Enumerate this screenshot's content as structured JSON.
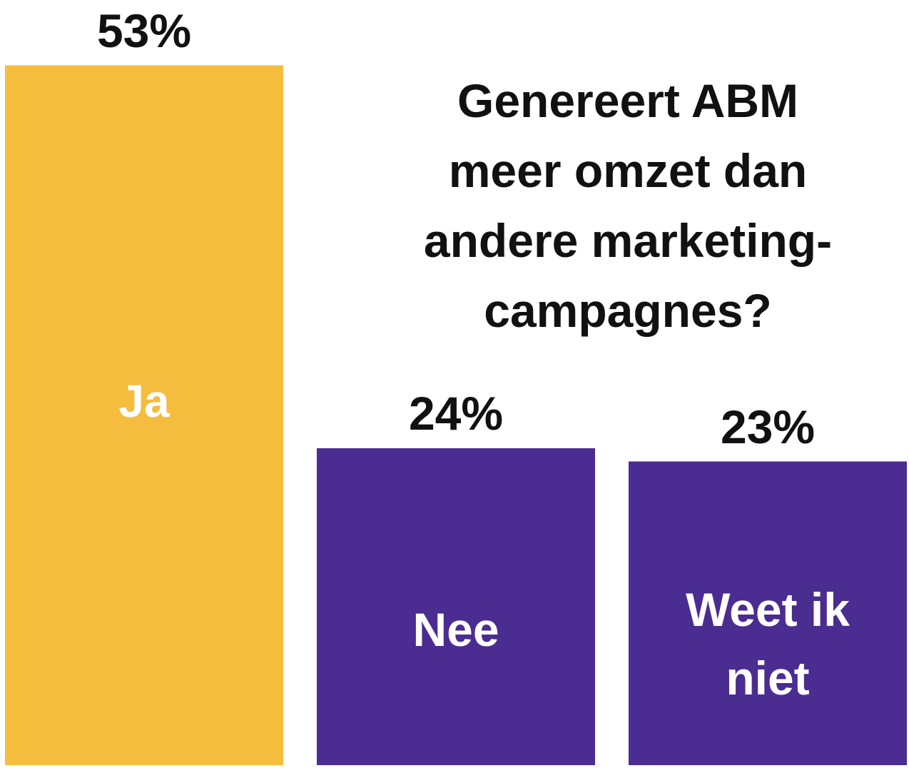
{
  "chart_data": {
    "type": "bar",
    "title": "Genereert ABM\nmeer omzet dan\nandere marketing-\ncampagnes?",
    "categories": [
      "Ja",
      "Nee",
      "Weet ik\nniet"
    ],
    "values": [
      53,
      24,
      23
    ],
    "value_labels": [
      "53%",
      "24%",
      "23%"
    ],
    "unit": "%",
    "xlabel": "",
    "ylabel": "",
    "grid": false,
    "legend": "none",
    "colors": [
      "#F4BD3E",
      "#4B2C91",
      "#4B2C91"
    ]
  }
}
